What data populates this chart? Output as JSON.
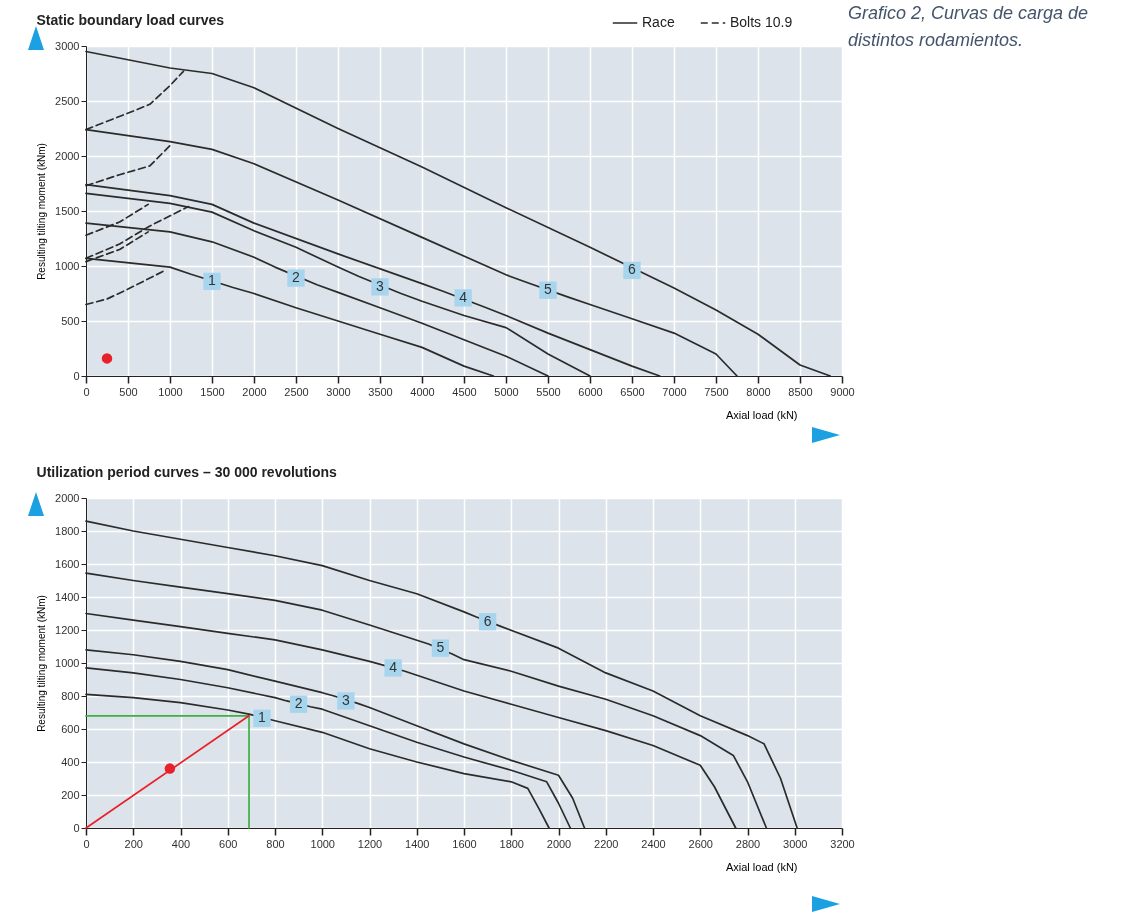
{
  "chart_data": [
    {
      "type": "line",
      "title": "Static boundary load curves",
      "xlabel": "Axial load (kN)",
      "ylabel": "Resulting tilting moment (kNm)",
      "xlim": [
        0,
        9000
      ],
      "xticks": [
        0,
        500,
        1000,
        1500,
        2000,
        2500,
        3000,
        3500,
        4000,
        4500,
        5000,
        5500,
        6000,
        6500,
        7000,
        7500,
        8000,
        8500,
        9000
      ],
      "ylim": [
        0,
        3000
      ],
      "yticks": [
        0,
        500,
        1000,
        1500,
        2000,
        2500,
        3000
      ],
      "grid": true,
      "legend": "top right",
      "series": [
        {
          "name": "Race",
          "color": "#2b2b2b",
          "line_style": "solid",
          "x": [
            0,
            1000,
            1500,
            2000,
            3000,
            4000,
            5000,
            6000,
            7000,
            7500,
            8000,
            8500,
            8860
          ],
          "values": [
            2950,
            2800,
            2750,
            2620,
            2250,
            1900,
            1530,
            1170,
            800,
            600,
            380,
            100,
            0
          ]
        },
        {
          "color": "#2b2b2b",
          "line_style": "solid",
          "x": [
            0,
            1000,
            1500,
            2000,
            3000,
            4000,
            5000,
            5250,
            5750,
            6000,
            6500,
            7000,
            7500,
            7750
          ],
          "values": [
            2240,
            2130,
            2060,
            1930,
            1600,
            1260,
            920,
            850,
            715,
            650,
            520,
            390,
            200,
            0
          ]
        },
        {
          "color": "#2b2b2b",
          "line_style": "solid",
          "x": [
            0,
            1000,
            1500,
            2000,
            3000,
            4000,
            4250,
            4750,
            5000,
            5500,
            6000,
            6500,
            6830
          ],
          "values": [
            1740,
            1640,
            1560,
            1390,
            1110,
            840,
            770,
            625,
            550,
            390,
            240,
            90,
            0
          ]
        },
        {
          "color": "#2b2b2b",
          "line_style": "solid",
          "x": [
            0,
            1000,
            1500,
            2000,
            2500,
            3000,
            3250,
            3750,
            4000,
            4500,
            5000,
            5500,
            6000
          ],
          "values": [
            1660,
            1570,
            1490,
            1320,
            1170,
            990,
            905,
            750,
            680,
            550,
            440,
            200,
            0
          ]
        },
        {
          "color": "#2b2b2b",
          "line_style": "solid",
          "x": [
            0,
            1000,
            1500,
            2000,
            2250,
            2750,
            3000,
            3500,
            4000,
            4500,
            5000,
            5500
          ],
          "values": [
            1390,
            1310,
            1220,
            1080,
            990,
            830,
            760,
            620,
            480,
            330,
            180,
            0
          ]
        },
        {
          "color": "#2b2b2b",
          "line_style": "solid",
          "x": [
            0,
            1000,
            1250,
            1750,
            2000,
            2500,
            3000,
            3500,
            4000,
            4500,
            4850
          ],
          "values": [
            1070,
            990,
            925,
            805,
            750,
            620,
            500,
            380,
            260,
            90,
            0
          ]
        },
        {
          "name": "Bolts 10.9",
          "color": "#2b2b2b",
          "line_style": "dashed",
          "x": [
            0,
            300,
            600,
            760,
            1000,
            1160
          ],
          "values": [
            2240,
            2330,
            2420,
            2470,
            2640,
            2770
          ]
        },
        {
          "color": "#2b2b2b",
          "line_style": "dashed",
          "x": [
            0,
            400,
            760,
            1020
          ],
          "values": [
            1730,
            1830,
            1910,
            2110
          ]
        },
        {
          "color": "#2b2b2b",
          "line_style": "dashed",
          "x": [
            0,
            400,
            740
          ],
          "values": [
            1280,
            1400,
            1560
          ]
        },
        {
          "color": "#2b2b2b",
          "line_style": "dashed",
          "x": [
            0,
            400,
            750,
            1220
          ],
          "values": [
            1070,
            1200,
            1360,
            1540
          ]
        },
        {
          "color": "#2b2b2b",
          "line_style": "dashed",
          "x": [
            0,
            400,
            740
          ],
          "values": [
            1040,
            1150,
            1310
          ]
        },
        {
          "color": "#2b2b2b",
          "line_style": "dashed",
          "x": [
            0,
            250,
            500,
            940
          ],
          "values": [
            650,
            700,
            790,
            960
          ]
        },
        {
          "type": "scatter",
          "color": "#e8202a",
          "x": [
            250
          ],
          "values": [
            160
          ]
        }
      ],
      "annotations": [
        {
          "text": "1",
          "x": 1500,
          "y": 860
        },
        {
          "text": "2",
          "x": 2500,
          "y": 890
        },
        {
          "text": "3",
          "x": 3500,
          "y": 810
        },
        {
          "text": "4",
          "x": 4490,
          "y": 710
        },
        {
          "text": "5",
          "x": 5500,
          "y": 780
        },
        {
          "text": "6",
          "x": 6500,
          "y": 960
        },
        "Grafico 2, Curvas de carga de distintos rodamientos."
      ]
    },
    {
      "type": "line",
      "title": "Utilization period curves – 30 000 revolutions",
      "xlabel": "Axial load (kN)",
      "ylabel": "Resulting tilting moment (kNm)",
      "xlim": [
        0,
        3200
      ],
      "xticks": [
        0,
        200,
        400,
        600,
        800,
        1000,
        1200,
        1400,
        1600,
        1800,
        2000,
        2200,
        2400,
        2600,
        2800,
        3000,
        3200
      ],
      "ylim": [
        0,
        2000
      ],
      "yticks": [
        0,
        200,
        400,
        600,
        800,
        1000,
        1200,
        1400,
        1600,
        1800,
        2000
      ],
      "grid": true,
      "series": [
        {
          "color": "#2b2b2b",
          "x": [
            0,
            200,
            400,
            600,
            690,
            800,
            1000,
            1200,
            1400,
            1600,
            1800,
            1870,
            1920,
            1960
          ],
          "values": [
            810,
            790,
            760,
            715,
            690,
            650,
            580,
            480,
            400,
            330,
            280,
            240,
            110,
            0
          ]
        },
        {
          "color": "#2b2b2b",
          "x": [
            0,
            200,
            400,
            600,
            800,
            850,
            950,
            1000,
            1200,
            1400,
            1600,
            1800,
            1950,
            2000,
            2050
          ],
          "values": [
            970,
            940,
            900,
            850,
            790,
            770,
            735,
            720,
            620,
            520,
            430,
            350,
            280,
            150,
            0
          ]
        },
        {
          "color": "#2b2b2b",
          "x": [
            0,
            200,
            400,
            600,
            800,
            1000,
            1050,
            1150,
            1200,
            1400,
            1600,
            1800,
            2000,
            2060,
            2110
          ],
          "values": [
            1080,
            1050,
            1010,
            960,
            890,
            820,
            800,
            755,
            730,
            620,
            510,
            410,
            320,
            180,
            0
          ]
        },
        {
          "color": "#2b2b2b",
          "x": [
            0,
            200,
            400,
            600,
            800,
            1000,
            1200,
            1250,
            1350,
            1600,
            1800,
            2000,
            2200,
            2400,
            2600,
            2660,
            2750
          ],
          "values": [
            1300,
            1260,
            1220,
            1180,
            1140,
            1080,
            1010,
            990,
            950,
            830,
            750,
            670,
            590,
            500,
            380,
            250,
            0
          ]
        },
        {
          "color": "#2b2b2b",
          "x": [
            0,
            200,
            400,
            600,
            800,
            1000,
            1200,
            1450,
            1550,
            1600,
            1800,
            2000,
            2200,
            2400,
            2600,
            2740,
            2800,
            2880
          ],
          "values": [
            1545,
            1500,
            1460,
            1420,
            1380,
            1320,
            1230,
            1115,
            1055,
            1020,
            950,
            860,
            780,
            680,
            560,
            440,
            280,
            0
          ]
        },
        {
          "color": "#2b2b2b",
          "x": [
            0,
            200,
            400,
            600,
            800,
            1000,
            1200,
            1400,
            1600,
            1650,
            1750,
            2000,
            2200,
            2400,
            2600,
            2800,
            2870,
            2940,
            3010
          ],
          "values": [
            1860,
            1800,
            1750,
            1700,
            1650,
            1590,
            1500,
            1420,
            1310,
            1280,
            1225,
            1090,
            940,
            830,
            680,
            560,
            510,
            300,
            0
          ]
        },
        {
          "color": "#3cb043",
          "x": [
            0,
            690,
            690
          ],
          "values": [
            680,
            680,
            0
          ]
        },
        {
          "color": "#e8202a",
          "x": [
            0,
            690
          ],
          "values": [
            0,
            680
          ]
        },
        {
          "type": "scatter",
          "color": "#e8202a",
          "x": [
            355
          ],
          "values": [
            360
          ]
        }
      ],
      "annotations": [
        {
          "text": "1",
          "x": 745,
          "y": 665
        },
        {
          "text": "2",
          "x": 900,
          "y": 750
        },
        {
          "text": "3",
          "x": 1100,
          "y": 770
        },
        {
          "text": "4",
          "x": 1300,
          "y": 970
        },
        {
          "text": "5",
          "x": 1500,
          "y": 1090
        },
        {
          "text": "6",
          "x": 1700,
          "y": 1250
        }
      ]
    }
  ]
}
